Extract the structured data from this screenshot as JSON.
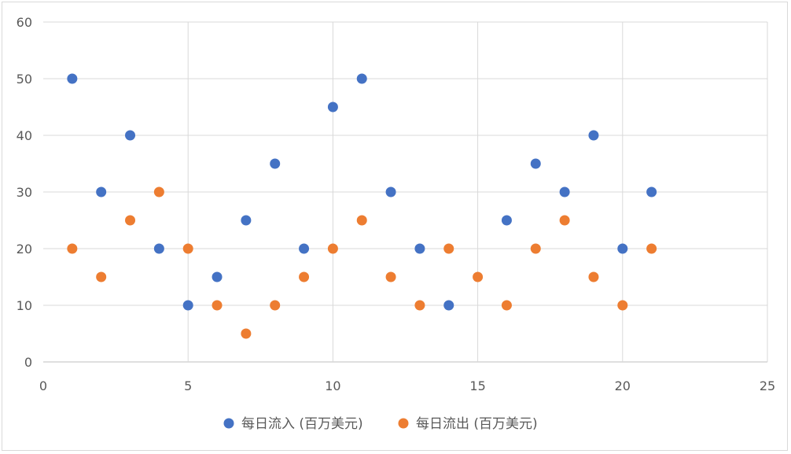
{
  "chart_data": {
    "type": "scatter",
    "title": "",
    "xlabel": "",
    "ylabel": "",
    "xlim": [
      0,
      25
    ],
    "ylim": [
      0,
      60
    ],
    "x_ticks": [
      0,
      5,
      10,
      15,
      20,
      25
    ],
    "y_ticks": [
      0,
      10,
      20,
      30,
      40,
      50,
      60
    ],
    "x_tick_labels": [
      "0",
      "5",
      "10",
      "15",
      "20",
      "25"
    ],
    "y_tick_labels": [
      "0",
      "10",
      "20",
      "30",
      "40",
      "50",
      "60"
    ],
    "grid": true,
    "legend_position": "bottom",
    "series": [
      {
        "name": "每日流入 (百万美元)",
        "color": "#4472c4",
        "points": [
          [
            1,
            50
          ],
          [
            2,
            30
          ],
          [
            3,
            40
          ],
          [
            4,
            20
          ],
          [
            5,
            10
          ],
          [
            6,
            15
          ],
          [
            7,
            25
          ],
          [
            8,
            35
          ],
          [
            9,
            20
          ],
          [
            10,
            45
          ],
          [
            11,
            50
          ],
          [
            12,
            30
          ],
          [
            13,
            20
          ],
          [
            14,
            10
          ],
          [
            16,
            25
          ],
          [
            17,
            35
          ],
          [
            18,
            30
          ],
          [
            19,
            40
          ],
          [
            20,
            20
          ],
          [
            21,
            30
          ]
        ]
      },
      {
        "name": "每日流出 (百万美元)",
        "color": "#ed7d31",
        "points": [
          [
            1,
            20
          ],
          [
            2,
            15
          ],
          [
            3,
            25
          ],
          [
            4,
            30
          ],
          [
            5,
            20
          ],
          [
            6,
            10
          ],
          [
            7,
            5
          ],
          [
            8,
            10
          ],
          [
            9,
            15
          ],
          [
            10,
            20
          ],
          [
            11,
            25
          ],
          [
            12,
            15
          ],
          [
            13,
            10
          ],
          [
            14,
            20
          ],
          [
            15,
            15
          ],
          [
            16,
            10
          ],
          [
            17,
            20
          ],
          [
            18,
            25
          ],
          [
            19,
            15
          ],
          [
            20,
            10
          ],
          [
            21,
            20
          ]
        ]
      }
    ]
  }
}
